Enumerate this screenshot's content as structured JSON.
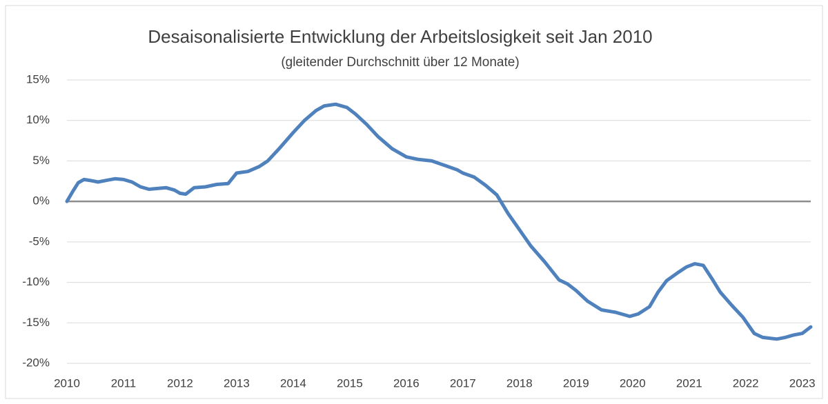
{
  "chart_data": {
    "type": "line",
    "title": "Desaisonalisierte Entwicklung der Arbeitslosigkeit seit Jan 2010",
    "subtitle": "(gleitender Durchschnitt über 12 Monate)",
    "x": [
      2010.0,
      2010.1,
      2010.2,
      2010.3,
      2010.4,
      2010.55,
      2010.7,
      2010.85,
      2011.0,
      2011.15,
      2011.3,
      2011.45,
      2011.6,
      2011.75,
      2011.9,
      2012.0,
      2012.1,
      2012.25,
      2012.45,
      2012.65,
      2012.85,
      2013.0,
      2013.2,
      2013.4,
      2013.55,
      2013.75,
      2014.0,
      2014.2,
      2014.4,
      2014.55,
      2014.75,
      2014.95,
      2015.1,
      2015.3,
      2015.5,
      2015.75,
      2016.0,
      2016.2,
      2016.45,
      2016.7,
      2016.9,
      2017.0,
      2017.2,
      2017.4,
      2017.6,
      2017.8,
      2018.0,
      2018.2,
      2018.45,
      2018.7,
      2018.85,
      2019.0,
      2019.2,
      2019.45,
      2019.7,
      2019.95,
      2020.1,
      2020.3,
      2020.45,
      2020.6,
      2020.8,
      2020.95,
      2021.1,
      2021.25,
      2021.4,
      2021.55,
      2021.75,
      2021.95,
      2022.15,
      2022.3,
      2022.55,
      2022.7,
      2022.85,
      2023.0,
      2023.15
    ],
    "series": [
      {
        "name": "Arbeitslosigkeit",
        "color": "#4f81bd",
        "values": [
          0,
          1.2,
          2.3,
          2.7,
          2.6,
          2.4,
          2.6,
          2.8,
          2.7,
          2.4,
          1.8,
          1.5,
          1.6,
          1.7,
          1.4,
          1.0,
          0.9,
          1.7,
          1.8,
          2.1,
          2.2,
          3.5,
          3.7,
          4.3,
          5.0,
          6.5,
          8.5,
          10.0,
          11.2,
          11.8,
          12.0,
          11.6,
          10.8,
          9.5,
          8.0,
          6.5,
          5.5,
          5.2,
          5.0,
          4.4,
          3.9,
          3.5,
          3.0,
          2.0,
          0.8,
          -1.5,
          -3.5,
          -5.5,
          -7.5,
          -9.7,
          -10.2,
          -11.0,
          -12.3,
          -13.4,
          -13.7,
          -14.2,
          -13.9,
          -13.0,
          -11.2,
          -9.8,
          -8.8,
          -8.1,
          -7.7,
          -7.9,
          -9.5,
          -11.2,
          -12.8,
          -14.3,
          -16.3,
          -16.8,
          -17.0,
          -16.8,
          -16.5,
          -16.3,
          -15.5
        ]
      }
    ],
    "xlim": [
      2010,
      2023.15
    ],
    "xticks": [
      2010,
      2011,
      2012,
      2013,
      2014,
      2015,
      2016,
      2017,
      2018,
      2019,
      2020,
      2021,
      2022,
      2023
    ],
    "ylim": [
      -20,
      15
    ],
    "yticks": [
      {
        "value": -20,
        "label": "-20%"
      },
      {
        "value": -15,
        "label": "-15%"
      },
      {
        "value": -10,
        "label": "-10%"
      },
      {
        "value": -5,
        "label": "-5%"
      },
      {
        "value": 0,
        "label": "0%"
      },
      {
        "value": 5,
        "label": "5%"
      },
      {
        "value": 10,
        "label": "10%"
      },
      {
        "value": 15,
        "label": "15%"
      }
    ],
    "grid": true
  }
}
